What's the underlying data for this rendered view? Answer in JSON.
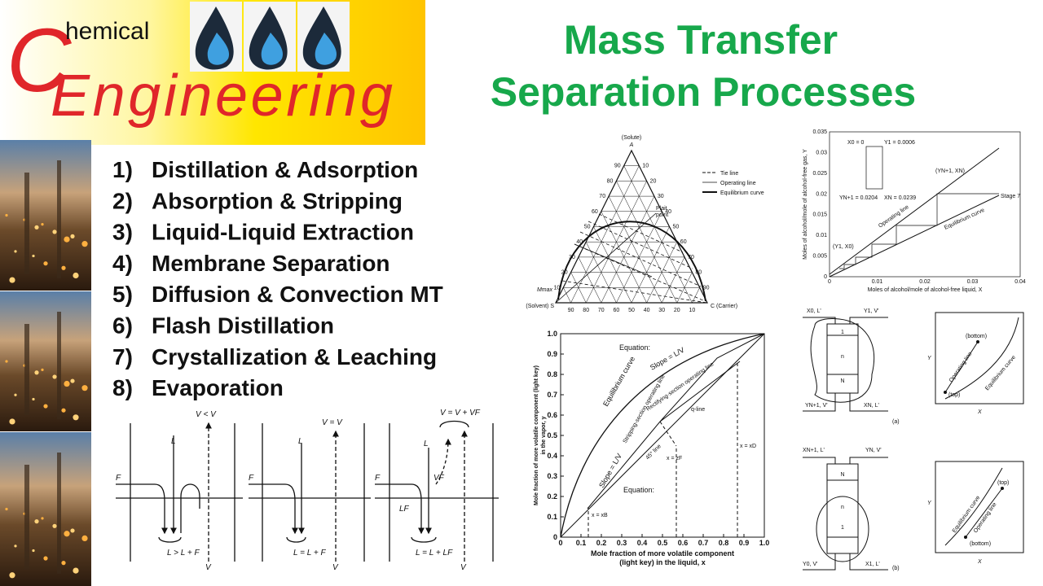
{
  "logo": {
    "initial": "C",
    "rest": "hemical",
    "word": "Engineering"
  },
  "title": [
    "Mass Transfer",
    "Separation Processes"
  ],
  "topics": [
    {
      "num": "1)",
      "text": "Distillation & Adsorption"
    },
    {
      "num": "2)",
      "text": "Absorption & Stripping"
    },
    {
      "num": "3)",
      "text": "Liquid-Liquid Extraction"
    },
    {
      "num": "4)",
      "text": "Membrane Separation"
    },
    {
      "num": "5)",
      "text": "Diffusion & Convection MT"
    },
    {
      "num": "6)",
      "text": "Flash Distillation"
    },
    {
      "num": "7)",
      "text": "Crystallization & Leaching"
    },
    {
      "num": "8)",
      "text": "Evaporation"
    }
  ],
  "ternary": {
    "apex": "(Solute)",
    "apex_letter": "A",
    "left": "(Solvent) S",
    "right": "C (Carrier)",
    "mmax": "Mmax",
    "plait": [
      "Plait",
      "point"
    ],
    "ticks": [
      "10",
      "20",
      "30",
      "40",
      "50",
      "60",
      "70",
      "80",
      "90"
    ],
    "legend": [
      "Tie line",
      "Operating line",
      "Equilibrium curve"
    ]
  },
  "xy_chart": {
    "ticks": [
      "0",
      "0.1",
      "0.2",
      "0.3",
      "0.4",
      "0.5",
      "0.6",
      "0.7",
      "0.8",
      "0.9",
      "1.0"
    ],
    "xlabel": [
      "Mole fraction of more volatile component",
      "(light key) in the liquid, x"
    ],
    "ylabel": [
      "Mole fraction of more volatile component (light key)",
      "in the vapor, y"
    ],
    "labels": [
      "Equation:",
      "Equilibrium curve",
      "Slope = L/V",
      "Rectifying-section operating line",
      "Stripping-section operating line",
      "45° line",
      "q-line",
      "x = xB",
      "x = zF",
      "x = xD",
      "Slope = L/V",
      "Equation:"
    ]
  },
  "stage_chart": {
    "yticks": [
      "0",
      "0.005",
      "0.01",
      "0.015",
      "0.02",
      "0.025",
      "0.03",
      "0.035"
    ],
    "xticks": [
      "0",
      "0.01",
      "0.02",
      "0.03",
      "0.04"
    ],
    "xlabel": "Moles of alcohol/mole of alcohol-free liquid, X",
    "ylabel": "Moles of alcohol/mole of alcohol-free gas, Y",
    "labels": [
      "X0 = 0",
      "Y1 = 0.0006",
      "YN+1 = 0.0204",
      "XN = 0.0239",
      "(YN+1, XN)",
      "Operating line",
      "Equilibrium curve",
      "Stage 7",
      "(Y1, X0)"
    ]
  },
  "columns": {
    "top": [
      "X0, L'",
      "Y1, V'",
      "YN+1, V'",
      "XN, L'",
      "1",
      "n",
      "N",
      "(a)"
    ],
    "bottom": [
      "XN+1, L'",
      "YN, V'",
      "Y0, V'",
      "X1, L'",
      "N",
      "n",
      "1",
      "(b)"
    ],
    "plot_a": [
      "(bottom)",
      "Operating line",
      "Equilibrium curve",
      "(top)",
      "Y",
      "X"
    ],
    "plot_b": [
      "Equilibrium curve",
      "(top)",
      "Operating line",
      "(bottom)",
      "Y",
      "X"
    ]
  },
  "flash": {
    "labels": [
      "V < V",
      "L",
      "F",
      "L > L + F",
      "V",
      "V = V",
      "L",
      "F",
      "L = L + F",
      "V",
      "V = V + VF",
      "L",
      "F",
      "VF",
      "LF",
      "L = L + LF",
      "V"
    ]
  }
}
